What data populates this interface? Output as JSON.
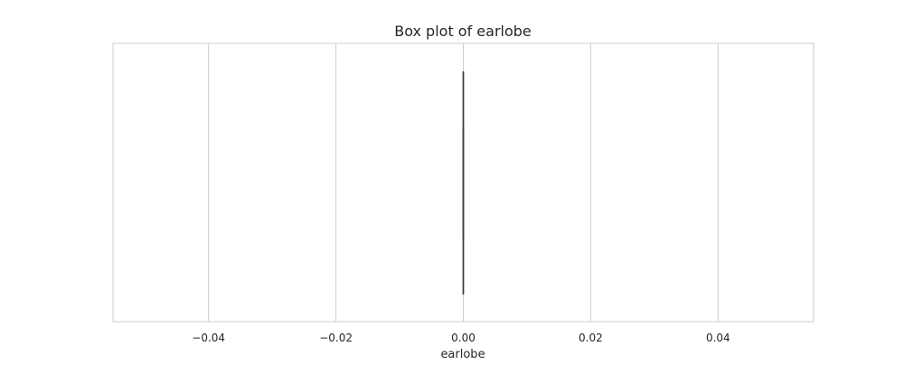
{
  "chart_data": {
    "type": "box",
    "orientation": "horizontal",
    "title": "Box plot of earlobe",
    "xlabel": "earlobe",
    "ylabel": "",
    "xlim": [
      -0.055,
      0.055
    ],
    "xticks": [
      -0.04,
      -0.02,
      0.0,
      0.02,
      0.04
    ],
    "xtick_labels": [
      "−0.04",
      "−0.02",
      "0.00",
      "0.02",
      "0.04"
    ],
    "grid": true,
    "series": [
      {
        "min": 0.0,
        "q1": 0.0,
        "median": 0.0,
        "q3": 0.0,
        "max": 0.0
      }
    ]
  },
  "colors": {
    "grid": "#cccccc",
    "frame": "#cccccc",
    "box_line": "#3a3a3a",
    "text": "#262626"
  }
}
